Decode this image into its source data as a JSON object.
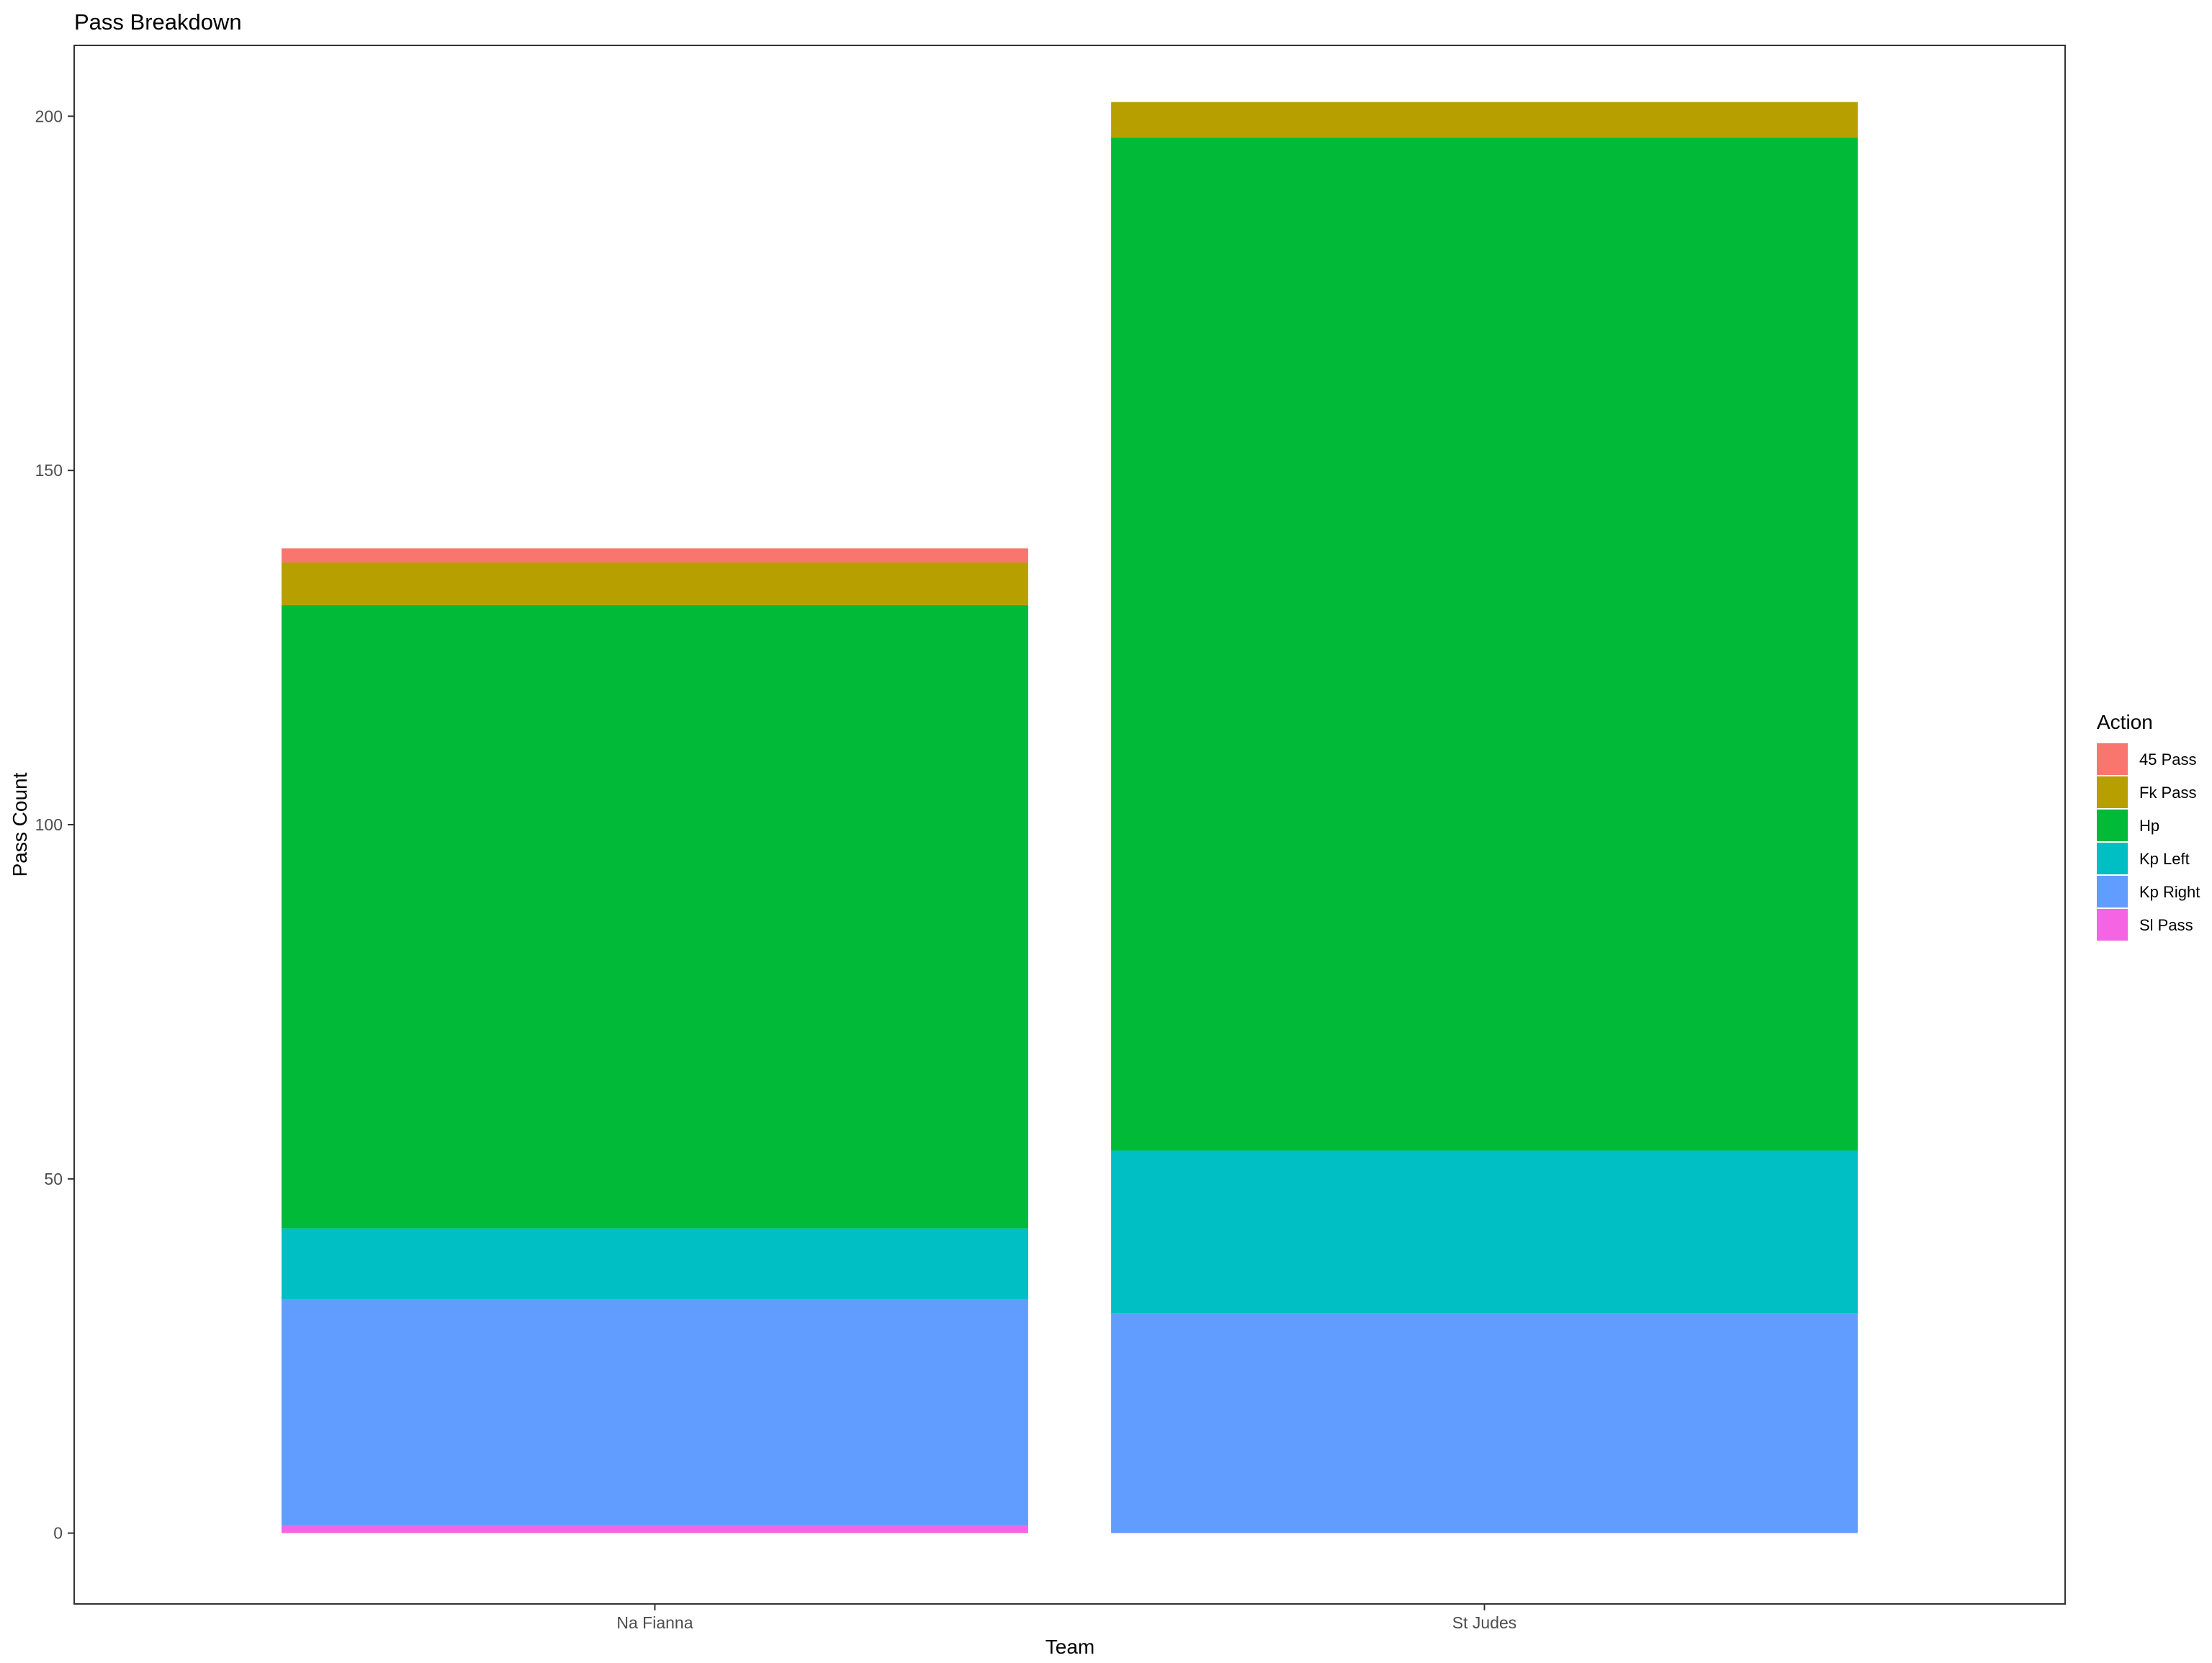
{
  "chart_data": {
    "type": "bar",
    "stacked": true,
    "title": "Pass Breakdown",
    "xlabel": "Team",
    "ylabel": "Pass Count",
    "categories": [
      "Na Fianna",
      "St Judes"
    ],
    "ylim": [
      -10,
      210
    ],
    "yticks": [
      0,
      50,
      100,
      150,
      200
    ],
    "grid": false,
    "legend": {
      "title": "Action",
      "placement": "right"
    },
    "series": [
      {
        "name": "Sl Pass",
        "color": "#F564E3",
        "values": [
          1,
          0
        ]
      },
      {
        "name": "Kp Right",
        "color": "#619CFF",
        "values": [
          32,
          31
        ]
      },
      {
        "name": "Kp Left",
        "color": "#00BFC4",
        "values": [
          10,
          23
        ]
      },
      {
        "name": "Hp",
        "color": "#00BA38",
        "values": [
          88,
          143
        ]
      },
      {
        "name": "Fk Pass",
        "color": "#B79F00",
        "values": [
          6,
          5
        ]
      },
      {
        "name": "45 Pass",
        "color": "#F8766D",
        "values": [
          2,
          0
        ]
      }
    ],
    "legend_order": [
      "45 Pass",
      "Fk Pass",
      "Hp",
      "Kp Left",
      "Kp Right",
      "Sl Pass"
    ]
  }
}
